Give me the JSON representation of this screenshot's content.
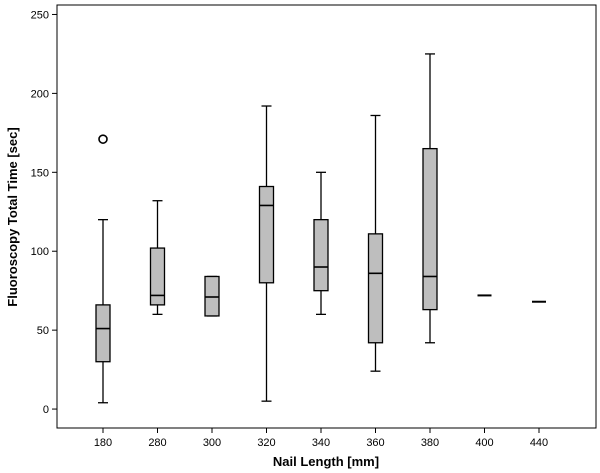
{
  "chart_data": {
    "type": "boxplot",
    "xlabel": "Nail Length [mm]",
    "ylabel": "Fluoroscopy Total Time [sec]",
    "ylim": [
      -12,
      256
    ],
    "yticks": [
      0,
      50,
      100,
      150,
      200,
      250
    ],
    "grid": false,
    "colors": {
      "box_fill": "#bebebe",
      "stroke": "#000000",
      "background": "#ffffff"
    },
    "categories": [
      "180",
      "280",
      "300",
      "320",
      "340",
      "360",
      "380",
      "400",
      "440"
    ],
    "boxes": [
      {
        "category": "180",
        "min": 4,
        "q1": 30,
        "median": 51,
        "q3": 66,
        "max": 120,
        "outliers": [
          171
        ]
      },
      {
        "category": "280",
        "min": 60,
        "q1": 66,
        "median": 72,
        "q3": 102,
        "max": 132,
        "outliers": []
      },
      {
        "category": "300",
        "min": 59,
        "q1": 59,
        "median": 71,
        "q3": 84,
        "max": 84,
        "outliers": []
      },
      {
        "category": "320",
        "min": 5,
        "q1": 80,
        "median": 129,
        "q3": 141,
        "max": 192,
        "outliers": []
      },
      {
        "category": "340",
        "min": 60,
        "q1": 75,
        "median": 90,
        "q3": 120,
        "max": 150,
        "outliers": []
      },
      {
        "category": "360",
        "min": 24,
        "q1": 42,
        "median": 86,
        "q3": 111,
        "max": 186,
        "outliers": []
      },
      {
        "category": "380",
        "min": 42,
        "q1": 63,
        "median": 84,
        "q3": 165,
        "max": 225,
        "outliers": []
      },
      {
        "category": "400",
        "min": 72,
        "q1": 72,
        "median": 72,
        "q3": 72,
        "max": 72,
        "outliers": []
      },
      {
        "category": "440",
        "min": 68,
        "q1": 68,
        "median": 68,
        "q3": 68,
        "max": 68,
        "outliers": []
      }
    ]
  }
}
